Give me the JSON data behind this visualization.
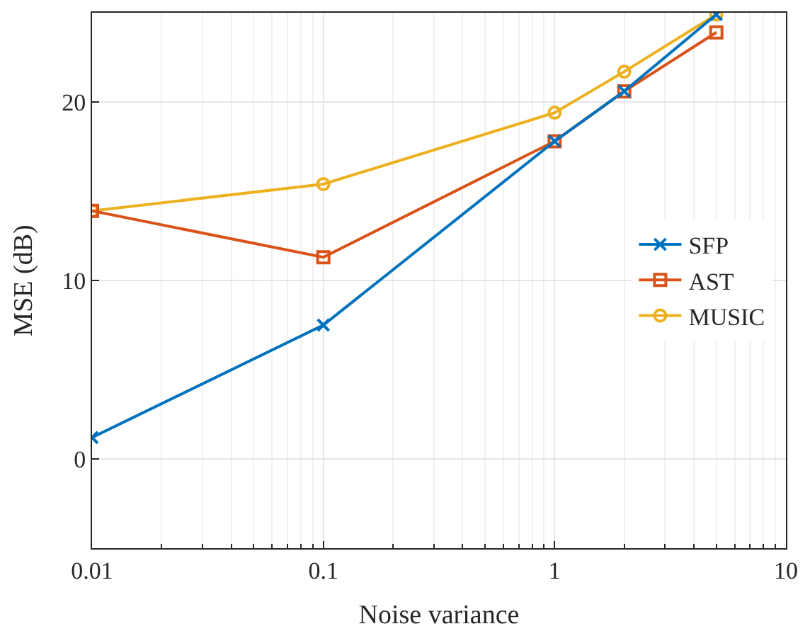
{
  "chart_data": {
    "type": "line",
    "xlabel": "Noise variance",
    "ylabel": "MSE (dB)",
    "x": [
      0.01,
      0.1,
      1,
      2,
      5
    ],
    "series": [
      {
        "name": "SFP",
        "color": "#0072bd",
        "marker": "cross",
        "values": [
          1.2,
          7.5,
          17.8,
          20.6,
          24.9
        ]
      },
      {
        "name": "AST",
        "color": "#d95319",
        "marker": "square",
        "values": [
          13.9,
          11.3,
          17.8,
          20.6,
          23.9
        ]
      },
      {
        "name": "MUSIC",
        "color": "#edb120",
        "marker": "circle",
        "values": [
          13.9,
          15.4,
          19.4,
          21.7,
          24.9
        ]
      }
    ],
    "log": "x",
    "xlim": [
      0.01,
      10
    ],
    "xticks": [
      0.01,
      0.1,
      1,
      10
    ],
    "ylim": [
      -5,
      25
    ],
    "yticks": [
      0,
      10,
      20
    ],
    "grid": true,
    "legend": "right",
    "line_style": "solid"
  }
}
